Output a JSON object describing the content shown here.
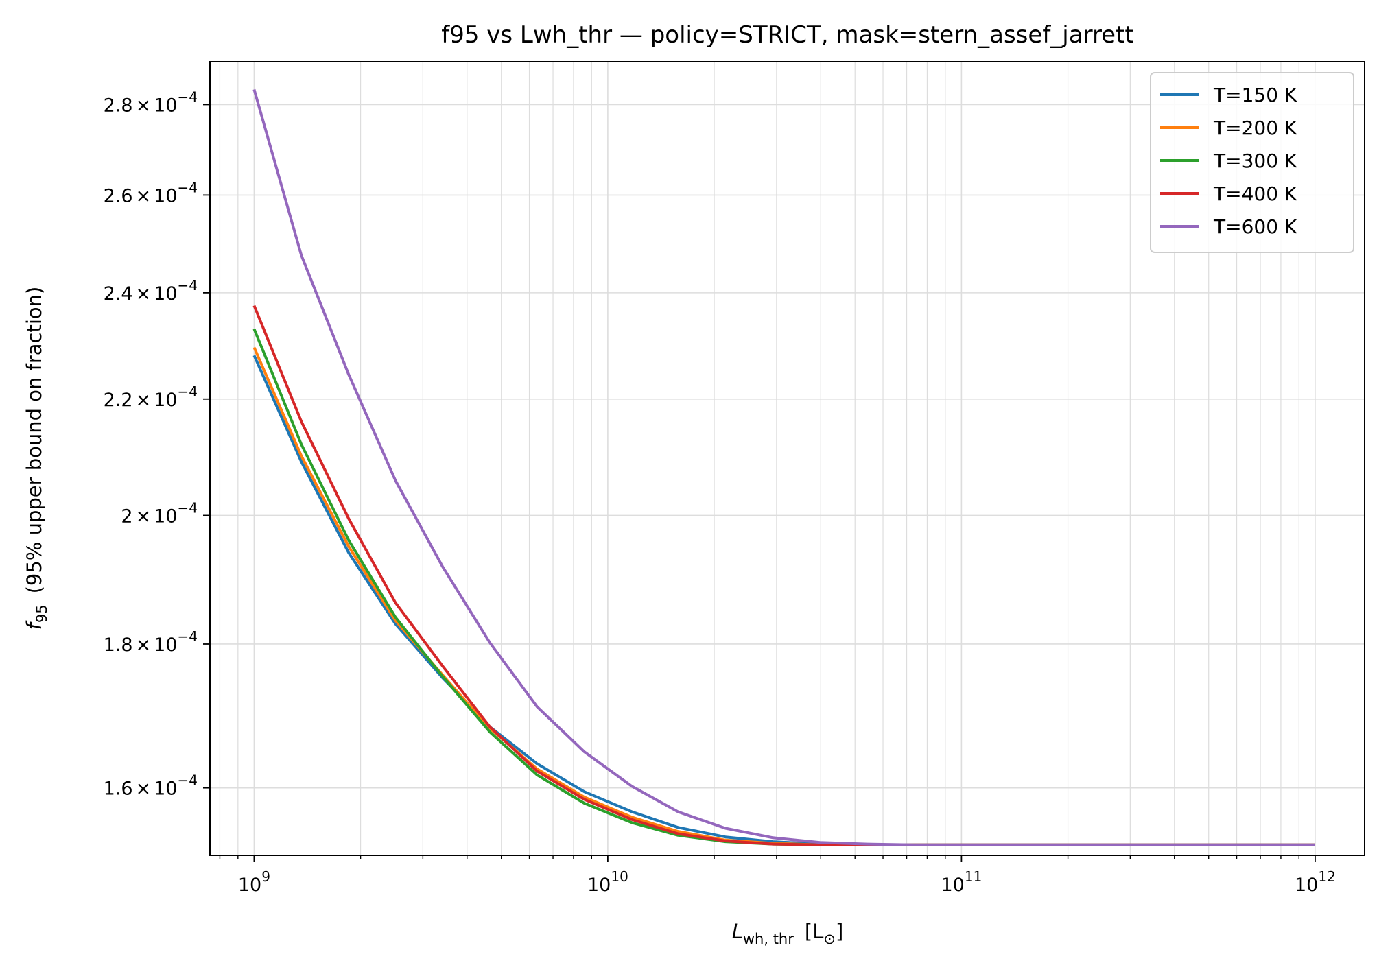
{
  "chart_data": {
    "type": "line",
    "title": "f95 vs Lwh_thr — policy=STRICT, mask=stern_assef_jarrett",
    "xlabel": "L_wh,thr [L_⊙]",
    "xlabel_parts": {
      "main": "L",
      "sub": "wh, thr",
      "bracket": "[L",
      "sub2": "⊙",
      "close": "]"
    },
    "ylabel": "f95 (95% upper bound on fraction)",
    "ylabel_parts": {
      "main": "f",
      "sub": "95",
      "rest": "(95% upper bound on fraction)"
    },
    "x_scale": "log",
    "y_scale": "log",
    "xlim": [
      750000000.0,
      1380000000000.0
    ],
    "ylim": [
      0.0001514,
      0.00029
    ],
    "x_ticks": [
      {
        "value": 1000000000.0,
        "base": "10",
        "exp": "9"
      },
      {
        "value": 10000000000.0,
        "base": "10",
        "exp": "10"
      },
      {
        "value": 100000000000.0,
        "base": "10",
        "exp": "11"
      },
      {
        "value": 1000000000000.0,
        "base": "10",
        "exp": "12"
      }
    ],
    "y_ticks": [
      {
        "value": 0.00016,
        "mantissa": "1.6",
        "base": "10",
        "exp": "−4"
      },
      {
        "value": 0.00018,
        "mantissa": "1.8",
        "base": "10",
        "exp": "−4"
      },
      {
        "value": 0.0002,
        "mantissa": "2",
        "base": "10",
        "exp": "−4"
      },
      {
        "value": 0.00022,
        "mantissa": "2.2",
        "base": "10",
        "exp": "−4"
      },
      {
        "value": 0.00024,
        "mantissa": "2.4",
        "base": "10",
        "exp": "−4"
      },
      {
        "value": 0.00026,
        "mantissa": "2.6",
        "base": "10",
        "exp": "−4"
      },
      {
        "value": 0.00028,
        "mantissa": "2.8",
        "base": "10",
        "exp": "−4"
      }
    ],
    "grid": true,
    "legend_position": "top-right",
    "x": [
      1000000000.0,
      1360000000.0,
      1850000000.0,
      2510000000.0,
      3410000000.0,
      4640000000.0,
      6310000000.0,
      8580000000.0,
      11700000000.0,
      15800000000.0,
      21500000000.0,
      29300000000.0,
      39800000000.0,
      54100000000.0,
      73600000000.0,
      100000000000.0,
      136000000000.0,
      185000000000.0,
      251000000000.0,
      341000000000.0,
      464000000000.0,
      631000000000.0,
      858000000000.0,
      1000000000000.0
    ],
    "series": [
      {
        "name": "T=150 K",
        "color": "#1f77b4",
        "values": [
          0.000228,
          0.000209,
          0.000194,
          0.000183,
          0.0001751,
          0.0001682,
          0.0001632,
          0.0001595,
          0.0001569,
          0.0001549,
          0.0001537,
          0.0001531,
          0.0001528,
          0.0001527,
          0.0001527,
          0.0001527,
          0.0001527,
          0.0001527,
          0.0001527,
          0.0001527,
          0.0001527,
          0.0001527,
          0.0001527,
          0.0001527
        ]
      },
      {
        "name": "T=200 K",
        "color": "#ff7f0e",
        "values": [
          0.0002295,
          0.00021,
          0.000195,
          0.0001835,
          0.0001755,
          0.000168,
          0.0001625,
          0.0001588,
          0.0001562,
          0.0001544,
          0.0001533,
          0.0001529,
          0.0001527,
          0.0001527,
          0.0001527,
          0.0001527,
          0.0001527,
          0.0001527,
          0.0001527,
          0.0001527,
          0.0001527,
          0.0001527,
          0.0001527,
          0.0001527
        ]
      },
      {
        "name": "T=300 K",
        "color": "#2ca02c",
        "values": [
          0.000233,
          0.000212,
          0.000196,
          0.000184,
          0.0001753,
          0.0001675,
          0.0001617,
          0.000158,
          0.0001555,
          0.0001539,
          0.0001531,
          0.0001528,
          0.0001527,
          0.0001527,
          0.0001527,
          0.0001527,
          0.0001527,
          0.0001527,
          0.0001527,
          0.0001527,
          0.0001527,
          0.0001527,
          0.0001527,
          0.0001527
        ]
      },
      {
        "name": "T=400 K",
        "color": "#d62728",
        "values": [
          0.0002375,
          0.000216,
          0.0001995,
          0.0001862,
          0.0001768,
          0.0001682,
          0.0001622,
          0.0001585,
          0.0001559,
          0.0001541,
          0.0001532,
          0.0001528,
          0.0001527,
          0.0001527,
          0.0001527,
          0.0001527,
          0.0001527,
          0.0001527,
          0.0001527,
          0.0001527,
          0.0001527,
          0.0001527,
          0.0001527,
          0.0001527
        ]
      },
      {
        "name": "T=600 K",
        "color": "#9467bd",
        "values": [
          0.0002835,
          0.0002475,
          0.0002245,
          0.0002058,
          0.0001918,
          0.0001802,
          0.000171,
          0.0001648,
          0.0001602,
          0.0001569,
          0.0001548,
          0.0001536,
          0.000153,
          0.0001528,
          0.0001527,
          0.0001527,
          0.0001527,
          0.0001527,
          0.0001527,
          0.0001527,
          0.0001527,
          0.0001527,
          0.0001527,
          0.0001527
        ]
      }
    ]
  }
}
